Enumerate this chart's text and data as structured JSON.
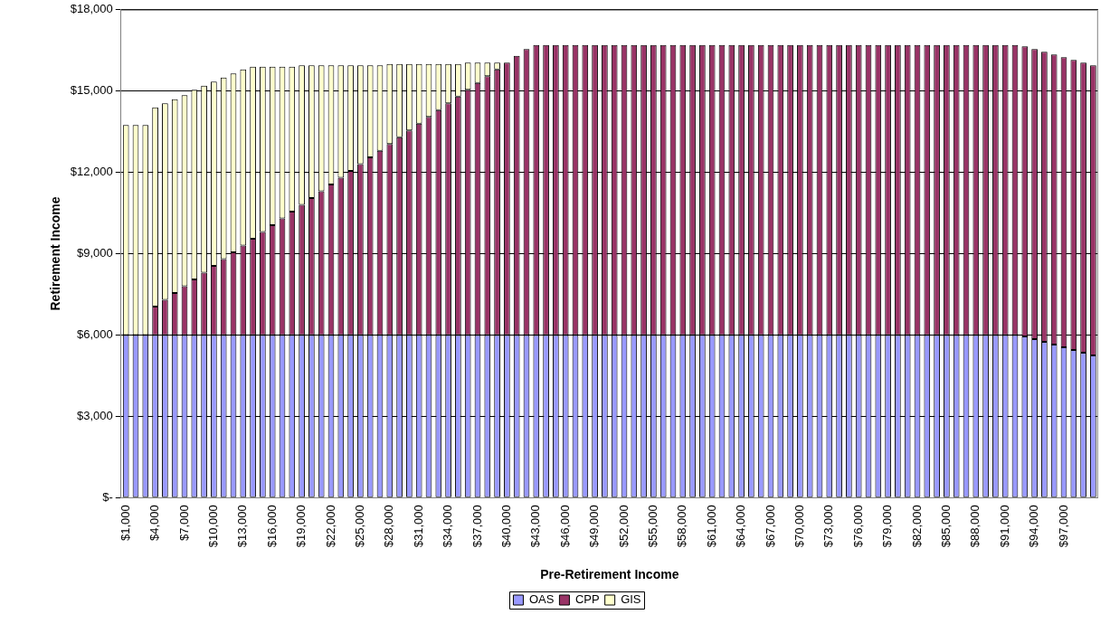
{
  "chart_data": {
    "type": "bar",
    "stacked": true,
    "xlabel": "Pre-Retirement Income",
    "ylabel": "Retirement Income",
    "categories": [
      "$1,000",
      null,
      null,
      "$4,000",
      null,
      null,
      "$7,000",
      null,
      null,
      "$10,000",
      null,
      null,
      "$13,000",
      null,
      null,
      "$16,000",
      null,
      null,
      "$19,000",
      null,
      null,
      "$22,000",
      null,
      null,
      "$25,000",
      null,
      null,
      "$28,000",
      null,
      null,
      "$31,000",
      null,
      null,
      "$34,000",
      null,
      null,
      "$37,000",
      null,
      null,
      "$40,000",
      null,
      null,
      "$43,000",
      null,
      null,
      "$46,000",
      null,
      null,
      "$49,000",
      null,
      null,
      "$52,000",
      null,
      null,
      "$55,000",
      null,
      null,
      "$58,000",
      null,
      null,
      "$61,000",
      null,
      null,
      "$64,000",
      null,
      null,
      "$67,000",
      null,
      null,
      "$70,000",
      null,
      null,
      "$73,000",
      null,
      null,
      "$76,000",
      null,
      null,
      "$79,000",
      null,
      null,
      "$82,000",
      null,
      null,
      "$85,000",
      null,
      null,
      "$88,000",
      null,
      null,
      "$91,000",
      null,
      null,
      "$94,000",
      null,
      null,
      "$97,000",
      null,
      null,
      null
    ],
    "series": [
      {
        "name": "OAS",
        "color": "#9999ff",
        "values": [
          6000,
          6000,
          6000,
          6000,
          6000,
          6000,
          6000,
          6000,
          6000,
          6000,
          6000,
          6000,
          6000,
          6000,
          6000,
          6000,
          6000,
          6000,
          6000,
          6000,
          6000,
          6000,
          6000,
          6000,
          6000,
          6000,
          6000,
          6000,
          6000,
          6000,
          6000,
          6000,
          6000,
          6000,
          6000,
          6000,
          6000,
          6000,
          6000,
          6000,
          6000,
          6000,
          6000,
          6000,
          6000,
          6000,
          6000,
          6000,
          6000,
          6000,
          6000,
          6000,
          6000,
          6000,
          6000,
          6000,
          6000,
          6000,
          6000,
          6000,
          6000,
          6000,
          6000,
          6000,
          6000,
          6000,
          6000,
          6000,
          6000,
          6000,
          6000,
          6000,
          6000,
          6000,
          6000,
          6000,
          6000,
          6000,
          6000,
          6000,
          6000,
          6000,
          6000,
          6000,
          6000,
          6000,
          6000,
          6000,
          6000,
          6000,
          6000,
          6000,
          5950,
          5850,
          5750,
          5650,
          5550,
          5450,
          5350,
          5250
        ]
      },
      {
        "name": "CPP",
        "color": "#993366",
        "values": [
          0,
          0,
          0,
          1050,
          1300,
          1550,
          1800,
          2050,
          2300,
          2550,
          2800,
          3050,
          3300,
          3550,
          3800,
          4050,
          4300,
          4550,
          4800,
          5050,
          5300,
          5550,
          5800,
          6050,
          6300,
          6550,
          6800,
          7050,
          7300,
          7550,
          7800,
          8050,
          8300,
          8550,
          8800,
          9050,
          9300,
          9550,
          9800,
          10050,
          10300,
          10550,
          10700,
          10700,
          10700,
          10700,
          10700,
          10700,
          10700,
          10700,
          10700,
          10700,
          10700,
          10700,
          10700,
          10700,
          10700,
          10700,
          10700,
          10700,
          10700,
          10700,
          10700,
          10700,
          10700,
          10700,
          10700,
          10700,
          10700,
          10700,
          10700,
          10700,
          10700,
          10700,
          10700,
          10700,
          10700,
          10700,
          10700,
          10700,
          10700,
          10700,
          10700,
          10700,
          10700,
          10700,
          10700,
          10700,
          10700,
          10700,
          10700,
          10700,
          10700,
          10700,
          10700,
          10700,
          10700,
          10700,
          10700,
          10700
        ]
      },
      {
        "name": "GIS",
        "color": "#ffffcc",
        "values": [
          7750,
          7750,
          7750,
          7350,
          7250,
          7150,
          7050,
          7000,
          6900,
          6800,
          6700,
          6600,
          6500,
          6350,
          6100,
          5850,
          5600,
          5350,
          5150,
          4900,
          4650,
          4400,
          4150,
          3900,
          3650,
          3400,
          3150,
          2950,
          2700,
          2450,
          2200,
          1950,
          1700,
          1450,
          1200,
          1000,
          750,
          500,
          250,
          0,
          0,
          0,
          0,
          0,
          0,
          0,
          0,
          0,
          0,
          0,
          0,
          0,
          0,
          0,
          0,
          0,
          0,
          0,
          0,
          0,
          0,
          0,
          0,
          0,
          0,
          0,
          0,
          0,
          0,
          0,
          0,
          0,
          0,
          0,
          0,
          0,
          0,
          0,
          0,
          0,
          0,
          0,
          0,
          0,
          0,
          0,
          0,
          0,
          0,
          0,
          0,
          0,
          0,
          0,
          0,
          0,
          0,
          0,
          0,
          0
        ]
      }
    ],
    "ylim": [
      0,
      18000
    ],
    "yticks": [
      {
        "value": 0,
        "label": "$-"
      },
      {
        "value": 3000,
        "label": "$3,000"
      },
      {
        "value": 6000,
        "label": "$6,000"
      },
      {
        "value": 9000,
        "label": "$9,000"
      },
      {
        "value": 12000,
        "label": "$12,000"
      },
      {
        "value": 15000,
        "label": "$15,000"
      },
      {
        "value": 18000,
        "label": "$18,000"
      }
    ],
    "grid": "y",
    "legend": "bottom"
  }
}
